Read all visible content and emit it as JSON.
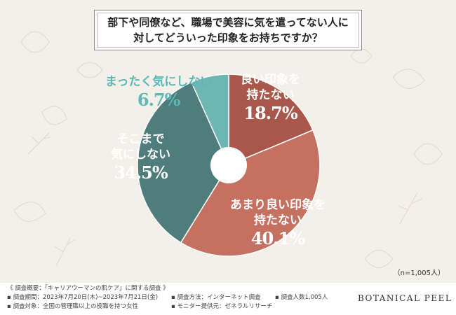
{
  "question": {
    "line1": "部下や同僚など、職場で美容に気を遣ってない人に",
    "line2": "対してどういった印象をお持ちですか？"
  },
  "chart_data": {
    "type": "pie",
    "title": "部下や同僚など、職場で美容に気を遣ってない人に対してどういった印象をお持ちですか？",
    "slices": [
      {
        "label": "良い印象を持たない",
        "value": 18.7,
        "value_label": "18.7%",
        "color": "#a9574a"
      },
      {
        "label": "あまり良い印象を持たない",
        "value": 40.1,
        "value_label": "40.1%",
        "color": "#c57162"
      },
      {
        "label": "そこまで気にしない",
        "value": 34.5,
        "value_label": "34.5%",
        "color": "#4e7d7b"
      },
      {
        "label": "まったく気にしない",
        "value": 6.7,
        "value_label": "6.7%",
        "color": "#6db6b4"
      }
    ],
    "donut_hole": true,
    "sample_note": "（n=1,005人）"
  },
  "labels": {
    "s1_line1": "良い印象を",
    "s1_line2": "持たない",
    "s2_line1": "あまり良い印象を",
    "s2_line2": "持たない",
    "s3_line1": "そこまで",
    "s3_line2": "気にしない",
    "s4_line1": "まったく気にしない"
  },
  "footer": {
    "summary": "《 調査概要：「キャリアウーマンの肌ケア」に関する調査 》",
    "period": "▪ 調査期間：2023年7月20日(木)~2023年7月21日(金)",
    "target": "▪ 調査対象：全国の管理職以上の役職を持つ女性",
    "method": "▪ 調査方法：インターネット調査",
    "provider": "▪ モニター提供元：ゼネラルリサーチ",
    "count": "▪ 調査人数1,005人",
    "brand": "BOTANICAL PEEL"
  }
}
